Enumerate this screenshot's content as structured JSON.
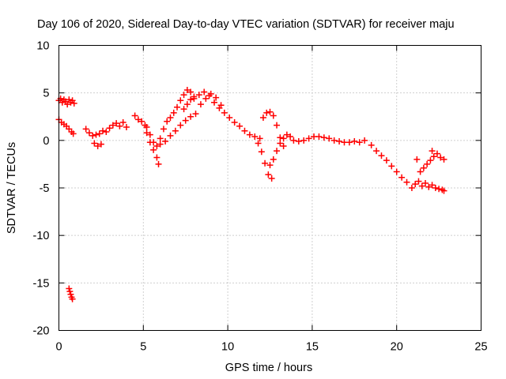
{
  "chart_data": {
    "type": "scatter",
    "title": "Day 106 of 2020, Sidereal Day-to-day VTEC variation (SDTVAR) for receiver maju",
    "xlabel": "GPS time / hours",
    "ylabel": "SDTVAR / TECUs",
    "xlim": [
      0,
      25
    ],
    "ylim": [
      -20,
      10
    ],
    "xticks": [
      0,
      5,
      10,
      15,
      20,
      25
    ],
    "yticks": [
      -20,
      -15,
      -10,
      -5,
      0,
      5,
      10
    ],
    "xtick_labels": [
      "0",
      "5",
      "10",
      "15",
      "20",
      "25"
    ],
    "ytick_labels": [
      "-20",
      "-15",
      "-10",
      "-5",
      "0",
      "5",
      "10"
    ],
    "grid": true,
    "marker": "+",
    "series_color": "#ff0000",
    "series": [
      {
        "name": "SDTVAR",
        "x": [
          0.0,
          0.1,
          0.2,
          0.3,
          0.4,
          0.5,
          0.6,
          0.7,
          0.8,
          0.9,
          0.0,
          0.15,
          0.3,
          0.45,
          0.6,
          0.75,
          0.85,
          0.6,
          0.65,
          0.7,
          0.75,
          0.8,
          1.6,
          1.8,
          2.0,
          2.2,
          2.4,
          2.6,
          2.8,
          3.0,
          3.2,
          3.4,
          3.6,
          3.8,
          4.0,
          2.1,
          2.3,
          2.5,
          4.5,
          4.7,
          4.9,
          5.1,
          5.2,
          5.4,
          5.6,
          5.8,
          5.9,
          5.2,
          5.4,
          5.6,
          5.8,
          6.0,
          6.2,
          6.4,
          6.6,
          6.8,
          7.0,
          7.2,
          7.4,
          7.6,
          7.8,
          8.0,
          6.0,
          6.3,
          6.6,
          6.9,
          7.2,
          7.5,
          7.8,
          8.1,
          7.4,
          7.6,
          7.8,
          8.0,
          8.3,
          8.6,
          8.9,
          9.2,
          9.5,
          9.8,
          10.1,
          10.4,
          10.7,
          11.0,
          11.3,
          11.6,
          11.9,
          8.4,
          8.7,
          9.0,
          9.3,
          9.6,
          11.8,
          12.0,
          12.2,
          12.4,
          12.6,
          12.1,
          12.3,
          12.5,
          12.7,
          12.9,
          13.1,
          13.3,
          12.5,
          12.7,
          12.9,
          13.1,
          13.3,
          13.5,
          13.7,
          13.9,
          14.2,
          14.5,
          14.8,
          15.1,
          15.4,
          15.7,
          16.0,
          16.3,
          16.6,
          16.9,
          17.2,
          17.5,
          17.8,
          18.1,
          18.5,
          18.8,
          19.1,
          19.4,
          19.7,
          20.0,
          20.3,
          20.6,
          20.9,
          21.1,
          21.3,
          21.5,
          21.7,
          21.9,
          22.1,
          22.3,
          22.5,
          22.7,
          22.8,
          21.4,
          21.6,
          21.8,
          22.0,
          22.2,
          22.4,
          22.6,
          22.8,
          21.2,
          22.1
        ],
        "y": [
          4.2,
          4.4,
          4.0,
          4.3,
          4.1,
          3.8,
          4.3,
          4.0,
          4.2,
          3.9,
          2.2,
          1.9,
          1.7,
          1.5,
          1.2,
          0.9,
          0.7,
          -15.6,
          -15.9,
          -16.2,
          -16.5,
          -16.7,
          1.2,
          0.8,
          0.5,
          0.6,
          0.7,
          1.0,
          0.9,
          1.3,
          1.6,
          1.8,
          1.5,
          1.9,
          1.4,
          -0.3,
          -0.6,
          -0.4,
          2.6,
          2.2,
          2.0,
          1.6,
          0.8,
          -0.2,
          -1.0,
          -1.8,
          -2.5,
          1.4,
          0.6,
          -0.2,
          -0.6,
          0.2,
          1.2,
          2.0,
          2.4,
          2.9,
          3.5,
          4.2,
          4.8,
          5.3,
          5.1,
          4.4,
          -0.4,
          -0.1,
          0.5,
          1.0,
          1.6,
          2.1,
          2.5,
          2.8,
          3.3,
          3.8,
          4.3,
          4.6,
          4.8,
          5.1,
          4.7,
          4.0,
          3.4,
          2.9,
          2.4,
          1.9,
          1.5,
          1.0,
          0.6,
          0.4,
          0.2,
          3.8,
          4.4,
          4.9,
          4.5,
          3.7,
          -0.3,
          -1.2,
          -2.4,
          -3.6,
          -4.0,
          2.4,
          2.9,
          3.0,
          2.6,
          1.6,
          0.3,
          -0.6,
          -2.6,
          -2.0,
          -1.1,
          -0.3,
          0.2,
          0.6,
          0.4,
          0.0,
          -0.1,
          0.0,
          0.2,
          0.4,
          0.4,
          0.3,
          0.2,
          0.0,
          -0.1,
          -0.2,
          -0.2,
          -0.1,
          -0.2,
          0.0,
          -0.5,
          -1.1,
          -1.6,
          -2.1,
          -2.7,
          -3.3,
          -3.9,
          -4.4,
          -5.0,
          -4.6,
          -4.3,
          -4.8,
          -4.5,
          -4.9,
          -4.7,
          -5.0,
          -5.1,
          -5.2,
          -5.3,
          -3.3,
          -2.9,
          -2.5,
          -2.1,
          -1.7,
          -1.4,
          -1.8,
          -2.0,
          -2.0,
          -1.1
        ]
      }
    ]
  }
}
